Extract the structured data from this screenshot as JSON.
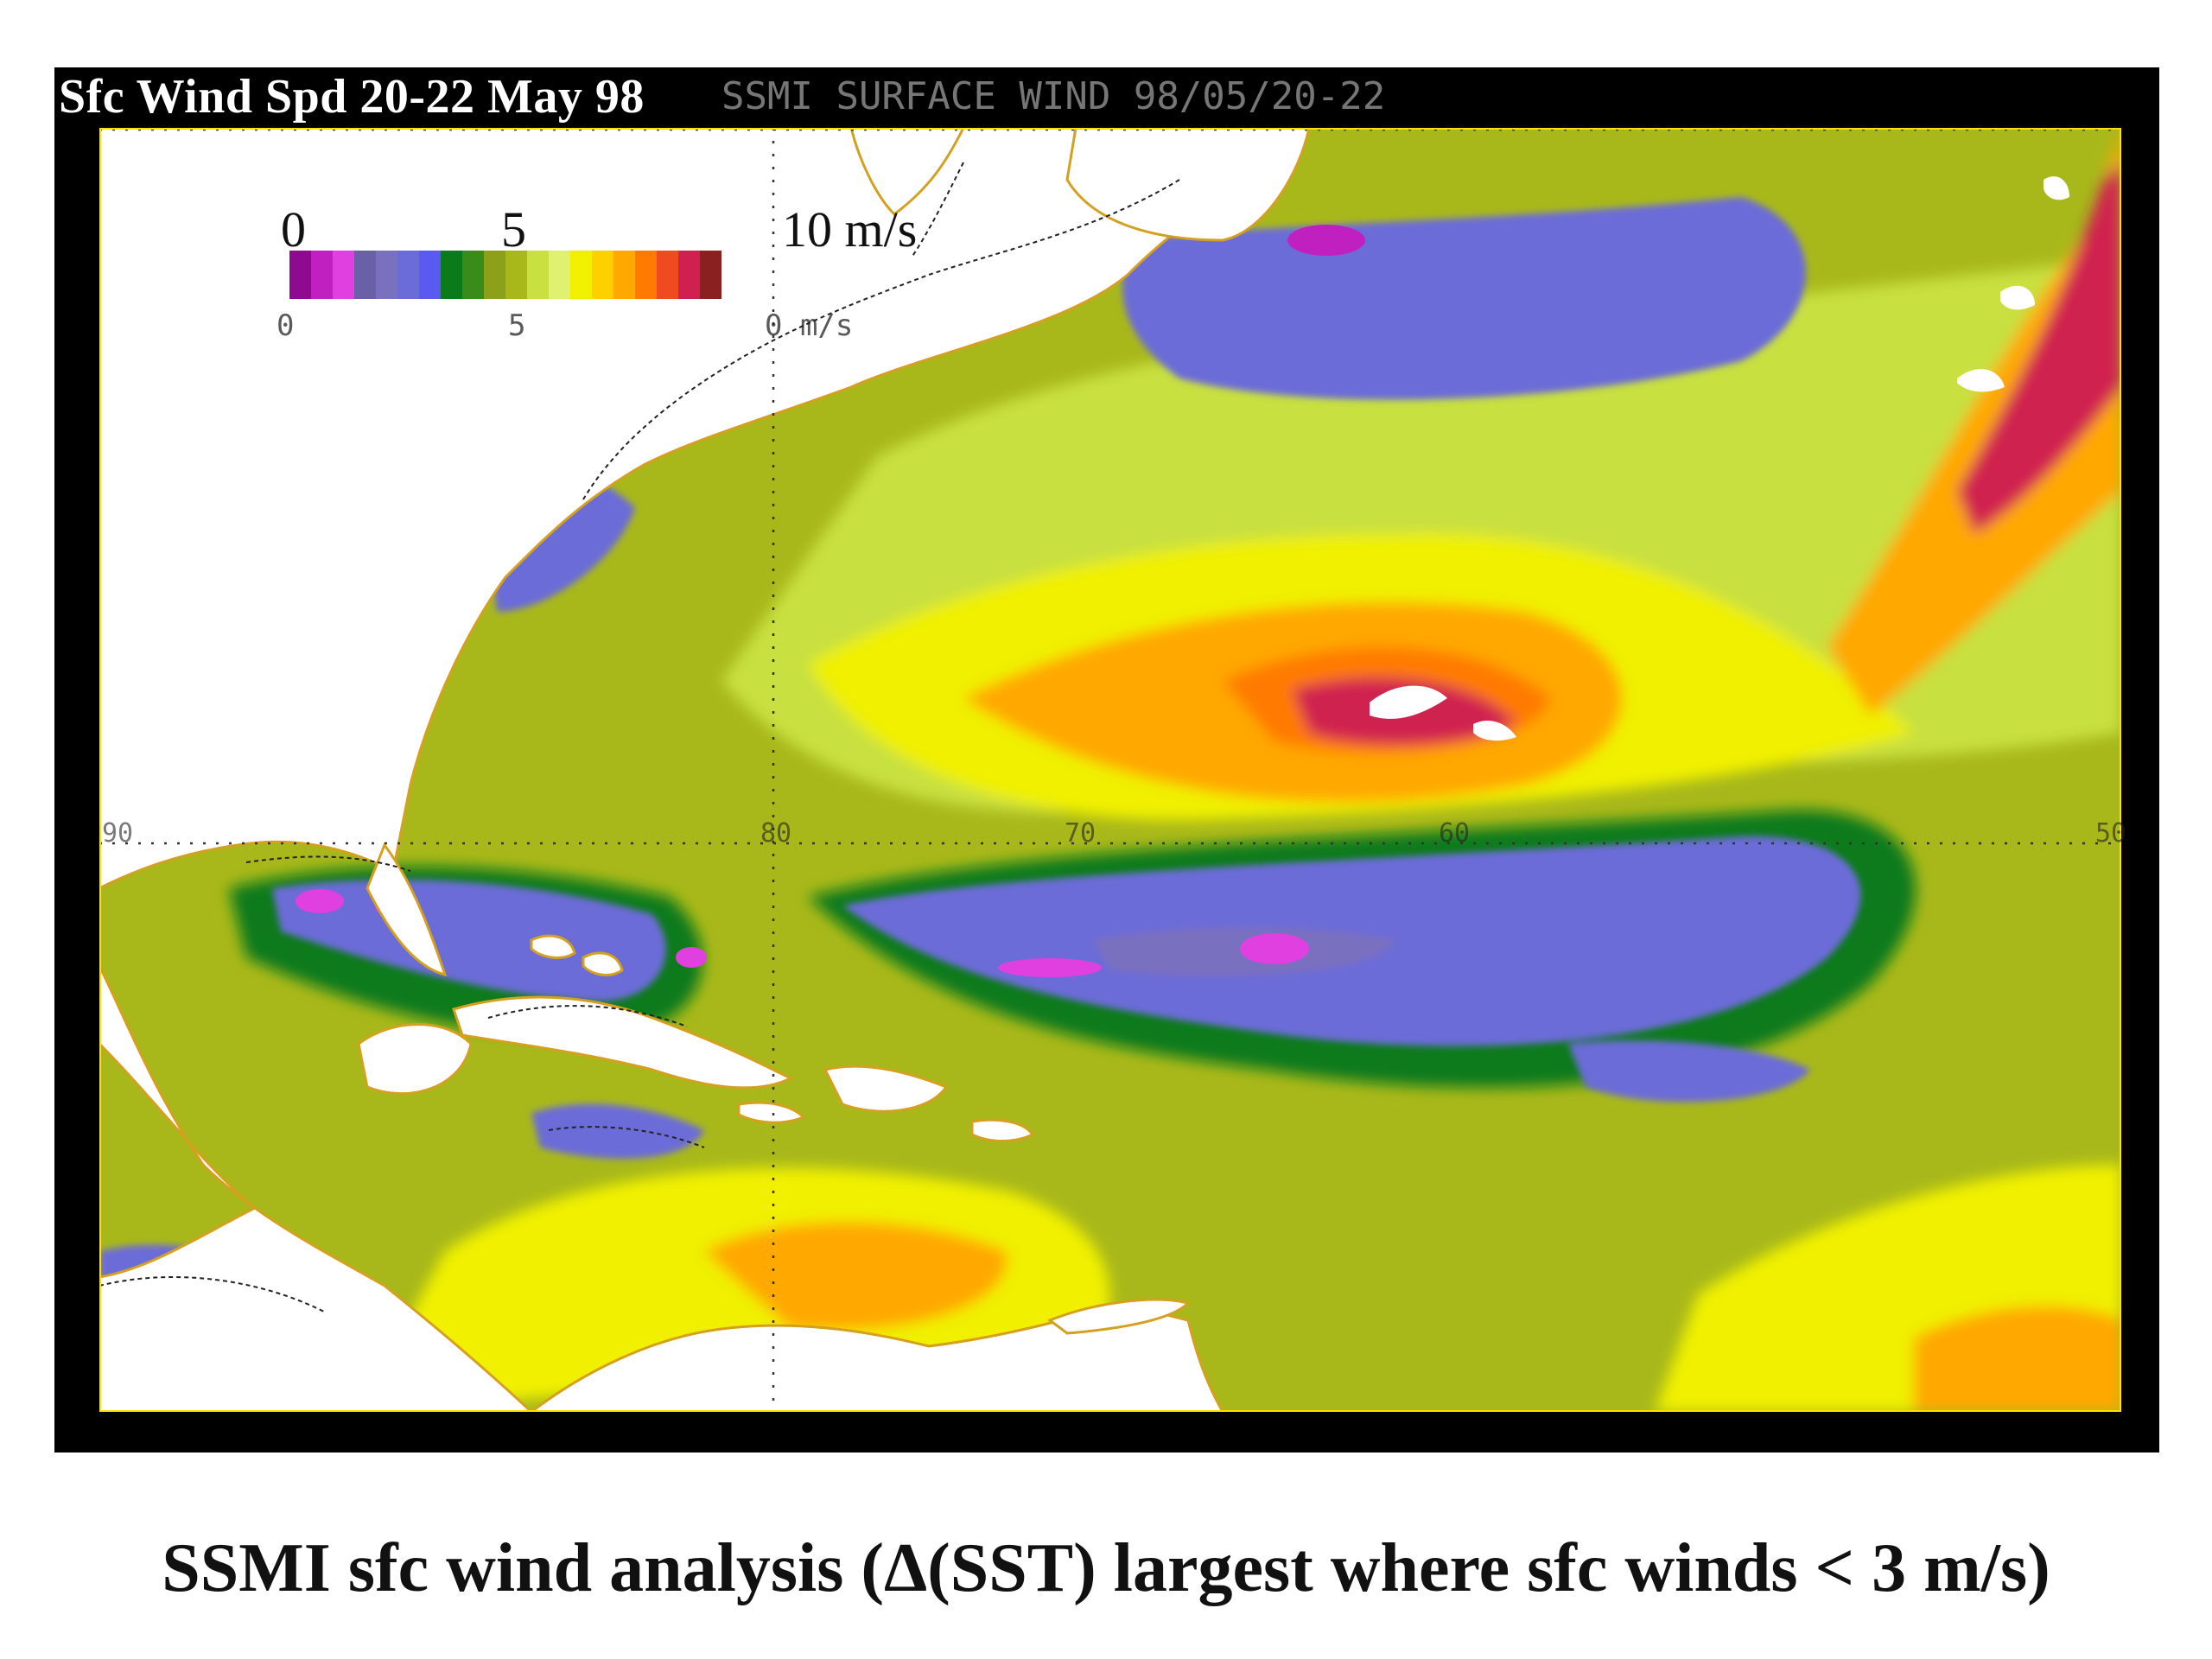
{
  "map": {
    "title": "Sfc Wind Spd 20-22 May 98",
    "title_ghost": "SSMI SURFACE WIND  98/05/20-22",
    "units": "m/s",
    "colorbar": {
      "tick_labels": [
        "0",
        "5",
        "10 m/s"
      ],
      "ghost_labels": [
        "0",
        "5",
        "0 m/s"
      ],
      "colors": [
        "#8e0a8e",
        "#c020c0",
        "#e040e0",
        "#6a60a8",
        "#7a70c0",
        "#6c6cd8",
        "#5a5af0",
        "#0a7a1a",
        "#3a8c1a",
        "#8ca01a",
        "#a8b81a",
        "#c8e040",
        "#e0f070",
        "#f0f000",
        "#ffd000",
        "#ffa800",
        "#ff7a00",
        "#f04a20",
        "#d02050",
        "#8a2020"
      ]
    },
    "longitude_labels": [
      "90",
      "80",
      "70",
      "60",
      "50"
    ],
    "regions": {
      "land_color": "#ffffff",
      "calm_color": "#6c6cd8",
      "strong_color": "#c03070"
    }
  },
  "caption": "SSMI sfc wind analysis (Δ(SST) largest where sfc winds < 3 m/s)"
}
